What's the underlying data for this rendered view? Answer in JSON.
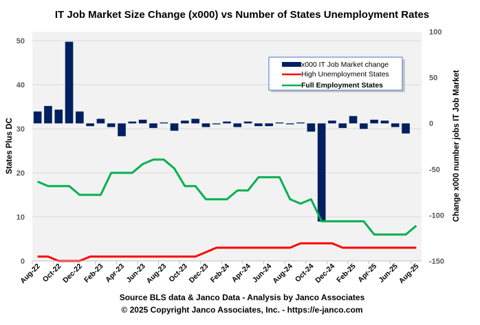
{
  "chart_data": {
    "type": "bar+line",
    "title": "IT Job Market Size Change (x000)  vs Number of States Unemployment Rates",
    "ylabel_left": "States Plus DC",
    "ylabel_right": "Change x000 number jobs IT Job Market",
    "ylim_left": [
      0,
      50
    ],
    "ylim_right": [
      -150,
      100
    ],
    "yticks_left": [
      "0",
      "10",
      "20",
      "30",
      "40",
      "50"
    ],
    "yticks_right": [
      "-150",
      "-100",
      "-50",
      "0",
      "50",
      "100"
    ],
    "grid": true,
    "legend_position": "top-right",
    "x": [
      "Aug-22",
      "Sep-22",
      "Oct-22",
      "Nov-22",
      "Dec-22",
      "Jan-23",
      "Feb-23",
      "Mar-23",
      "Apr-23",
      "May-23",
      "Jun-23",
      "Jul-23",
      "Aug-23",
      "Sep-23",
      "Oct-23",
      "Nov-23",
      "Dec-23",
      "Jan-24",
      "Feb-24",
      "Mar-24",
      "Apr-24",
      "May-24",
      "Jun-24",
      "Jul-24",
      "Aug-24",
      "Sep-24",
      "Oct-24",
      "Nov-24",
      "Dec-24",
      "Jan-25",
      "Feb-25",
      "Mar-25",
      "Apr-25",
      "May-25",
      "Jun-25",
      "Jul-25",
      "Aug-25"
    ],
    "xtick_labels": [
      "Aug-22",
      "Oct-22",
      "Dec-22",
      "Feb-23",
      "Apr-23",
      "Jun-23",
      "Aug-23",
      "Oct-23",
      "Dec-23",
      "Feb-24",
      "Apr-24",
      "Jun-24",
      "Aug-24",
      "Oct-24",
      "Dec-24",
      "Feb-25",
      "Apr-25",
      "Jun-25",
      "Aug-25"
    ],
    "series": [
      {
        "name": "x000 IT Job Market change",
        "type": "bar",
        "axis": "right",
        "color": "#002060",
        "values": [
          13,
          19,
          15,
          89,
          13,
          -3,
          5,
          -4,
          -14,
          2,
          4,
          -5,
          1,
          -8,
          3,
          5,
          -4,
          -1,
          2,
          -4,
          2,
          -3,
          -3,
          1,
          -1,
          1,
          -9,
          -107,
          3,
          -5,
          8,
          -6,
          4,
          3,
          -4,
          -11,
          null
        ]
      },
      {
        "name": "High Unemployment States",
        "type": "line",
        "axis": "left",
        "color": "#ff0000",
        "values": [
          1,
          1,
          0,
          0,
          0,
          1,
          1,
          1,
          1,
          1,
          1,
          1,
          1,
          1,
          1,
          1,
          2,
          3,
          3,
          3,
          3,
          3,
          3,
          3,
          3,
          4,
          4,
          4,
          4,
          3,
          3,
          3,
          3,
          3,
          3,
          3,
          3
        ]
      },
      {
        "name": "Full Employment States",
        "type": "line",
        "axis": "left",
        "color": "#00b050",
        "values": [
          18,
          17,
          17,
          17,
          15,
          15,
          15,
          20,
          20,
          20,
          22,
          23,
          23,
          21,
          17,
          17,
          14,
          14,
          14,
          16,
          16,
          19,
          19,
          19,
          14,
          13,
          14,
          9,
          9,
          9,
          9,
          9,
          6,
          6,
          6,
          6,
          8
        ]
      }
    ]
  },
  "footer": {
    "source": "Source BLS data & Janco Data  - Analysis  by Janco   Associates",
    "copyright": "© 2025 Copyright Janco Associates, Inc. - https://e-janco.com"
  }
}
